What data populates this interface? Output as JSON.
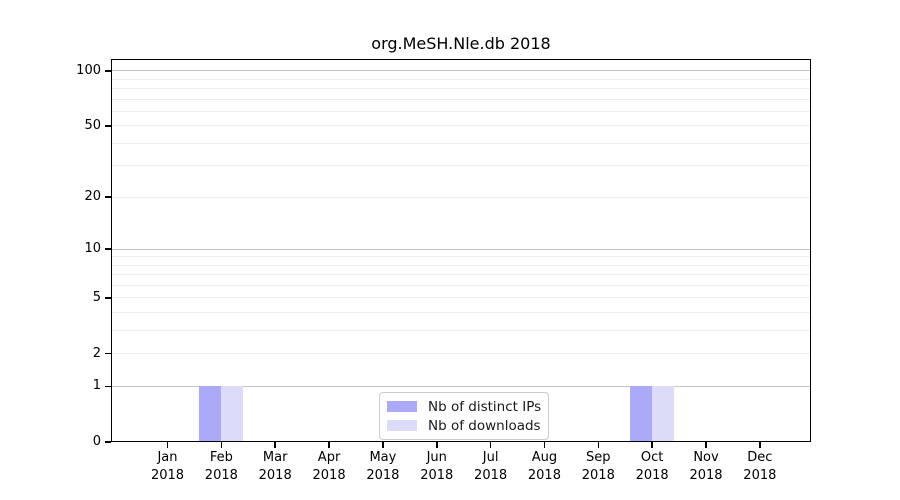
{
  "figure": {
    "title": "org.MeSH.Nle.db 2018",
    "background": "#ffffff"
  },
  "colors": {
    "distinct_ips": "#aaaaf8",
    "downloads": "#dcdcf8",
    "grid_major": "#c6c6c6",
    "grid_minor": "#efefef",
    "axis": "#000000",
    "legend_border": "#cccccc"
  },
  "chart_data": {
    "type": "bar",
    "title": "org.MeSH.Nle.db 2018",
    "categories": [
      "Jan 2018",
      "Feb 2018",
      "Mar 2018",
      "Apr 2018",
      "May 2018",
      "Jun 2018",
      "Jul 2018",
      "Aug 2018",
      "Sep 2018",
      "Oct 2018",
      "Nov 2018",
      "Dec 2018"
    ],
    "x_tick_line1": [
      "Jan",
      "Feb",
      "Mar",
      "Apr",
      "May",
      "Jun",
      "Jul",
      "Aug",
      "Sep",
      "Oct",
      "Nov",
      "Dec"
    ],
    "x_tick_line2": [
      "2018",
      "2018",
      "2018",
      "2018",
      "2018",
      "2018",
      "2018",
      "2018",
      "2018",
      "2018",
      "2018",
      "2018"
    ],
    "series": [
      {
        "name": "Nb of distinct IPs",
        "color": "#aaaaf8",
        "values": [
          0,
          1,
          0,
          0,
          0,
          0,
          0,
          0,
          0,
          1,
          0,
          0
        ]
      },
      {
        "name": "Nb of downloads",
        "color": "#dcdcf8",
        "values": [
          0,
          1,
          0,
          0,
          0,
          0,
          0,
          0,
          0,
          1,
          0,
          0
        ]
      }
    ],
    "xlabel": "",
    "ylabel": "",
    "y_axis": {
      "scale": "log1p",
      "tick_values": [
        0,
        1,
        2,
        5,
        10,
        20,
        50,
        100
      ],
      "tick_labels": [
        "0",
        "1",
        "2",
        "5",
        "10",
        "20",
        "50",
        "100"
      ],
      "minor_gridlines": [
        2,
        3,
        4,
        5,
        6,
        7,
        8,
        9,
        20,
        30,
        40,
        50,
        60,
        70,
        80,
        90
      ],
      "major_gridlines": [
        1,
        10,
        100
      ],
      "ylim": [
        0,
        114
      ]
    },
    "grid": "horizontal",
    "legend": {
      "position": "bottom-center",
      "entries": [
        "Nb of distinct IPs",
        "Nb of downloads"
      ]
    }
  }
}
